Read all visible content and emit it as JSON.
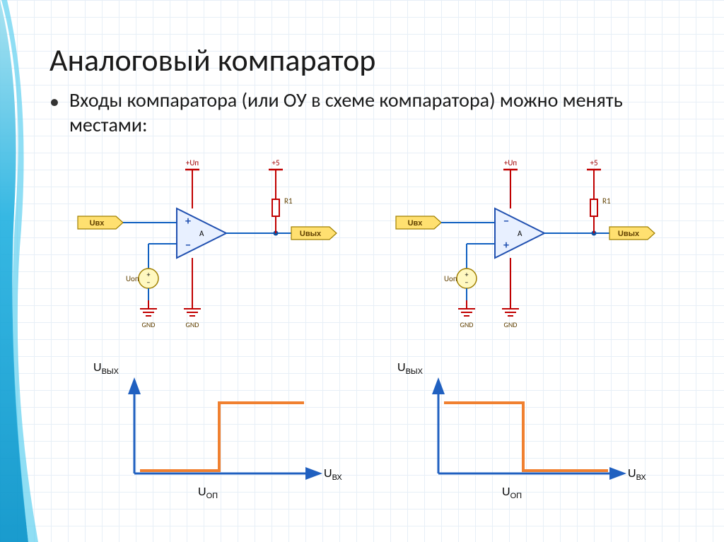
{
  "title": "Аналоговый компаратор",
  "bullet": "Входы компаратора (или ОУ в схеме компаратора) можно менять местами:",
  "circuit": {
    "labels": {
      "uvh": "Uвх",
      "uout": "Uвых",
      "upow": "+Uп",
      "plus5": "+5",
      "r1": "R1",
      "uop": "Uоп",
      "gnd": "GND",
      "opamp": "A",
      "plus": "+",
      "minus": "−"
    },
    "colors": {
      "wire_red": "#c00000",
      "wire_blue": "#1060c0",
      "opamp_fill": "#e8f0ff",
      "opamp_stroke": "#2050b0",
      "port_fill": "#ffe070",
      "port_stroke": "#a08000",
      "node": "#1050a0",
      "source_fill": "#fff8c0",
      "source_stroke": "#a08000",
      "text": "#000000"
    }
  },
  "graphs": {
    "axis_color": "#2060c0",
    "trace_color": "#f08030",
    "trace_width": 4,
    "axis_width": 3,
    "labels": {
      "y": "Uвых",
      "x": "Uвх",
      "mark": "Uоп"
    },
    "left": {
      "step_before_low": true
    },
    "right": {
      "step_before_low": false
    }
  },
  "layout": {
    "slide_bg": "#ffffff",
    "grid_color": "#d0e0f0",
    "side_gradient": [
      "#49c5e8",
      "#0099cc",
      "#49c5e8"
    ]
  }
}
